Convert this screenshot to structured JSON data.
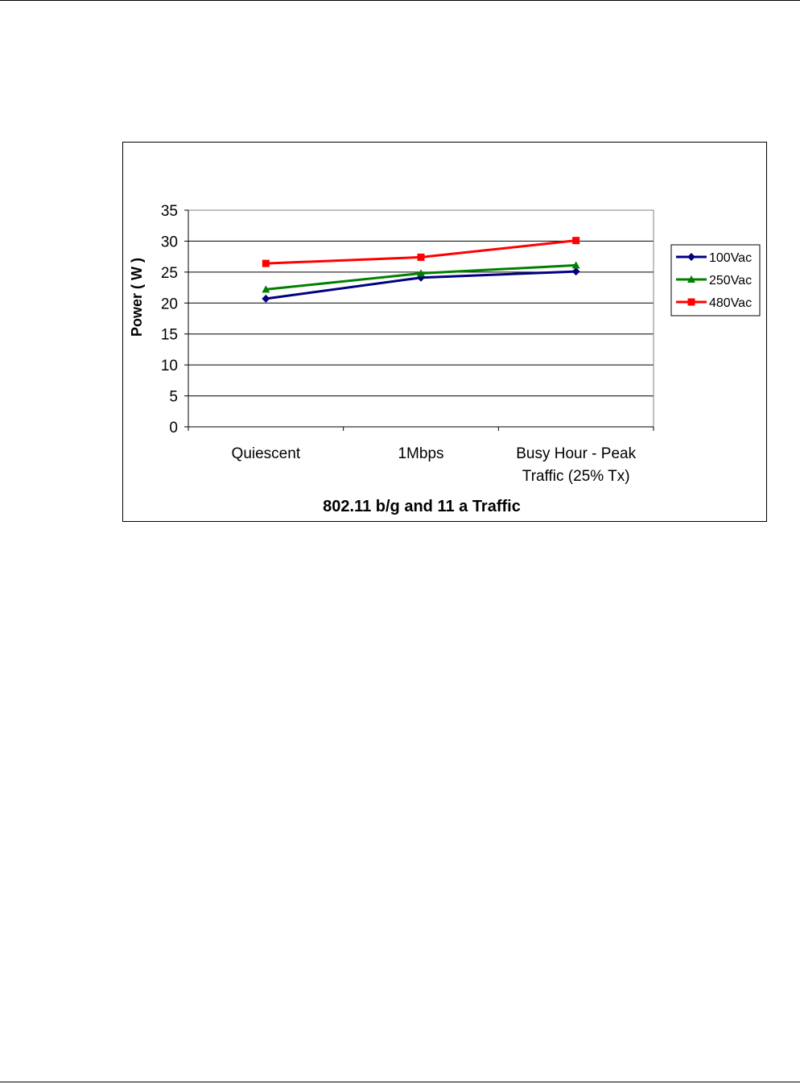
{
  "chart_data": {
    "type": "line",
    "title": "",
    "xlabel": "802.11 b/g and 11 a Traffic",
    "ylabel": "Power ( W )",
    "categories": [
      [
        "Quiescent"
      ],
      [
        "1Mbps"
      ],
      [
        "Busy Hour - Peak",
        "Traffic (25% Tx)"
      ]
    ],
    "ylim": [
      0,
      35
    ],
    "yticks": [
      0,
      5,
      10,
      15,
      20,
      25,
      30,
      35
    ],
    "grid": true,
    "legend_position": "right",
    "series": [
      {
        "name": "100Vac",
        "values": [
          20.7,
          24.1,
          25.1
        ],
        "color": "#000080",
        "marker": "diamond"
      },
      {
        "name": "250Vac",
        "values": [
          22.2,
          24.8,
          26.1
        ],
        "color": "#008000",
        "marker": "triangle"
      },
      {
        "name": "480Vac",
        "values": [
          26.4,
          27.4,
          30.1
        ],
        "color": "#ff0000",
        "marker": "square"
      }
    ]
  }
}
